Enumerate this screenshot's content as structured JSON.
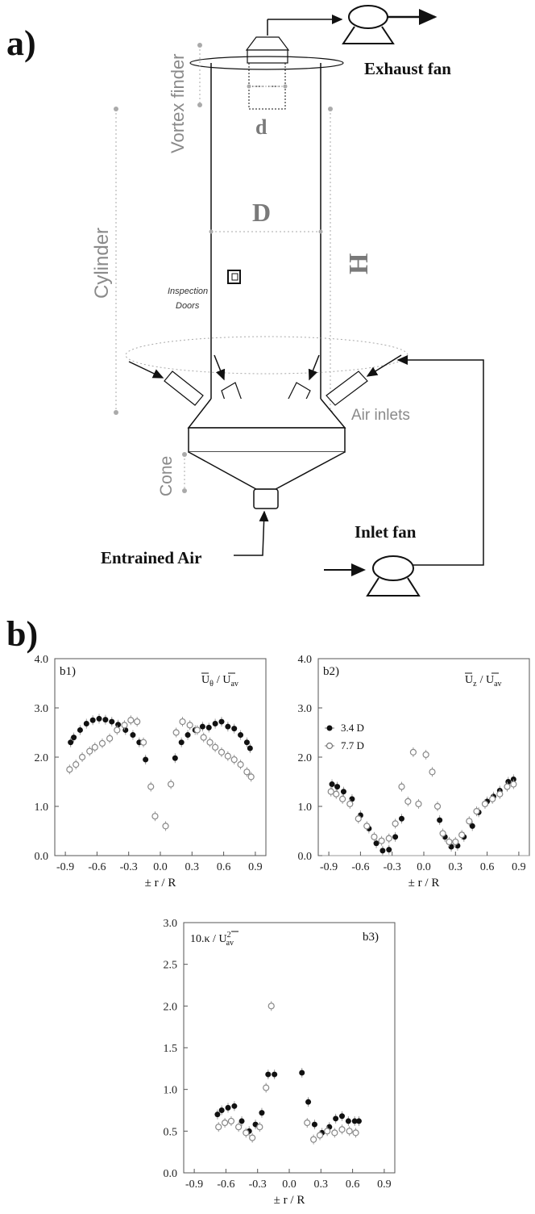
{
  "panel_a": {
    "letter": "a)",
    "labels": {
      "exhaust_fan": "Exhaust fan",
      "vortex_finder": "Vortex finder",
      "cylinder": "Cylinder",
      "d": "d",
      "D": "D",
      "H": "H",
      "inspection_doors_1": "Inspection",
      "inspection_doors_2": "Doors",
      "air_inlets": "Air inlets",
      "cone": "Cone",
      "inlet_fan": "Inlet fan",
      "entrained_air": "Entrained Air"
    }
  },
  "panel_b": {
    "letter": "b)"
  },
  "chart_data": [
    {
      "id": "b1",
      "type": "scatter",
      "panel_label": "b1)",
      "quantity_main": "U",
      "quantity_sub": "θ",
      "quantity_den": "U",
      "quantity_den_sub": "av",
      "xlabel": "± r / R",
      "xlim": [
        -1.0,
        1.0
      ],
      "ylim": [
        0.0,
        4.0
      ],
      "xticks": [
        "-0.9",
        "-0.6",
        "-0.3",
        "0.0",
        "0.3",
        "0.6",
        "0.9"
      ],
      "yticks": [
        "0.0",
        "1.0",
        "2.0",
        "3.0",
        "4.0"
      ],
      "series": [
        {
          "marker": "filled",
          "x": [
            -0.85,
            -0.82,
            -0.76,
            -0.7,
            -0.64,
            -0.58,
            -0.52,
            -0.46,
            -0.4,
            -0.33,
            -0.26,
            -0.2,
            -0.14,
            0.14,
            0.2,
            0.26,
            0.33,
            0.4,
            0.46,
            0.52,
            0.58,
            0.64,
            0.7,
            0.76,
            0.82,
            0.85
          ],
          "y": [
            2.3,
            2.4,
            2.55,
            2.68,
            2.75,
            2.78,
            2.76,
            2.72,
            2.66,
            2.55,
            2.45,
            2.3,
            1.95,
            1.98,
            2.3,
            2.45,
            2.55,
            2.62,
            2.6,
            2.68,
            2.72,
            2.62,
            2.58,
            2.45,
            2.3,
            2.18
          ]
        },
        {
          "marker": "open",
          "x": [
            -0.86,
            -0.8,
            -0.74,
            -0.67,
            -0.62,
            -0.55,
            -0.48,
            -0.41,
            -0.34,
            -0.28,
            -0.22,
            -0.16,
            -0.09,
            -0.05,
            0.05,
            0.1,
            0.15,
            0.21,
            0.28,
            0.35,
            0.41,
            0.47,
            0.52,
            0.58,
            0.64,
            0.7,
            0.76,
            0.82,
            0.86
          ],
          "y": [
            1.75,
            1.85,
            2.0,
            2.12,
            2.2,
            2.28,
            2.38,
            2.55,
            2.65,
            2.75,
            2.72,
            2.3,
            1.4,
            0.8,
            0.6,
            1.45,
            2.5,
            2.72,
            2.65,
            2.55,
            2.4,
            2.3,
            2.2,
            2.1,
            2.02,
            1.95,
            1.85,
            1.7,
            1.6
          ]
        }
      ]
    },
    {
      "id": "b2",
      "type": "scatter",
      "panel_label": "b2)",
      "quantity_main": "U",
      "quantity_sub": "z",
      "quantity_den": "U",
      "quantity_den_sub": "av",
      "xlabel": "± r / R",
      "xlim": [
        -1.0,
        1.0
      ],
      "ylim": [
        0.0,
        4.0
      ],
      "xticks": [
        "-0.9",
        "-0.6",
        "-0.3",
        "0.0",
        "0.3",
        "0.6",
        "0.9"
      ],
      "yticks": [
        "0.0",
        "1.0",
        "2.0",
        "3.0",
        "4.0"
      ],
      "legend": [
        "3.4 D",
        "7.7 D"
      ],
      "series": [
        {
          "name": "3.4 D",
          "marker": "filled",
          "x": [
            -0.87,
            -0.82,
            -0.76,
            -0.68,
            -0.6,
            -0.52,
            -0.45,
            -0.39,
            -0.33,
            -0.27,
            -0.21,
            0.15,
            0.2,
            0.26,
            0.32,
            0.38,
            0.46,
            0.52,
            0.6,
            0.66,
            0.72,
            0.8,
            0.85
          ],
          "y": [
            1.45,
            1.4,
            1.3,
            1.15,
            0.82,
            0.55,
            0.25,
            0.1,
            0.12,
            0.38,
            0.75,
            0.72,
            0.38,
            0.18,
            0.2,
            0.38,
            0.6,
            0.88,
            1.1,
            1.2,
            1.32,
            1.5,
            1.55
          ]
        },
        {
          "name": "7.7 D",
          "marker": "open",
          "x": [
            -0.88,
            -0.83,
            -0.77,
            -0.7,
            -0.62,
            -0.54,
            -0.47,
            -0.4,
            -0.33,
            -0.27,
            -0.21,
            -0.15,
            -0.1,
            -0.05,
            0.02,
            0.08,
            0.13,
            0.18,
            0.24,
            0.3,
            0.36,
            0.43,
            0.5,
            0.58,
            0.65,
            0.72,
            0.79,
            0.85
          ],
          "y": [
            1.3,
            1.25,
            1.15,
            1.05,
            0.75,
            0.6,
            0.38,
            0.3,
            0.35,
            0.65,
            1.4,
            1.1,
            2.1,
            1.05,
            2.05,
            1.7,
            1.0,
            0.45,
            0.28,
            0.28,
            0.42,
            0.7,
            0.9,
            1.05,
            1.15,
            1.25,
            1.4,
            1.45
          ]
        }
      ]
    },
    {
      "id": "b3",
      "type": "scatter",
      "panel_label": "b3)",
      "quantity_main": "10.κ / U",
      "quantity_sup": "2",
      "quantity_sub": "av",
      "xlabel": "± r / R",
      "xlim": [
        -1.0,
        1.0
      ],
      "ylim": [
        0.0,
        3.0
      ],
      "xticks": [
        "-0.9",
        "-0.6",
        "-0.3",
        "0.0",
        "0.3",
        "0.6",
        "0.9"
      ],
      "yticks": [
        "0.0",
        "0.5",
        "1.0",
        "1.5",
        "2.0",
        "2.5",
        "3.0"
      ],
      "series": [
        {
          "marker": "filled",
          "x": [
            -0.68,
            -0.64,
            -0.58,
            -0.52,
            -0.45,
            -0.38,
            -0.32,
            -0.26,
            -0.2,
            -0.14,
            0.12,
            0.18,
            0.24,
            0.31,
            0.38,
            0.44,
            0.5,
            0.56,
            0.62,
            0.66
          ],
          "y": [
            0.7,
            0.75,
            0.78,
            0.8,
            0.62,
            0.5,
            0.58,
            0.72,
            1.18,
            1.18,
            1.2,
            0.85,
            0.58,
            0.48,
            0.55,
            0.65,
            0.68,
            0.62,
            0.62,
            0.62
          ]
        },
        {
          "marker": "open",
          "x": [
            -0.67,
            -0.61,
            -0.55,
            -0.48,
            -0.41,
            -0.35,
            -0.28,
            -0.22,
            -0.17,
            0.17,
            0.23,
            0.29,
            0.36,
            0.43,
            0.5,
            0.57,
            0.63
          ],
          "y": [
            0.55,
            0.6,
            0.62,
            0.55,
            0.48,
            0.42,
            0.55,
            1.02,
            2.0,
            0.6,
            0.4,
            0.45,
            0.5,
            0.48,
            0.52,
            0.5,
            0.48
          ]
        }
      ]
    }
  ]
}
